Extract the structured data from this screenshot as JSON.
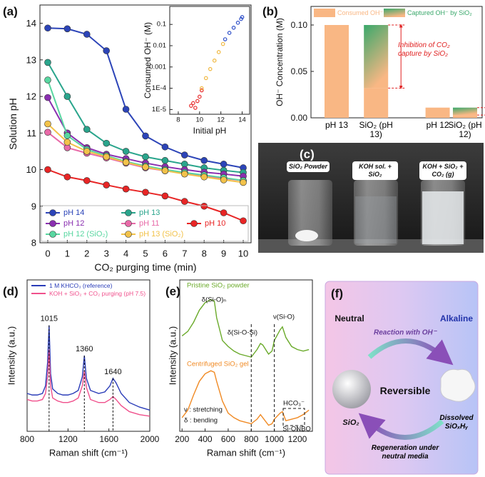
{
  "chart_data": [
    {
      "panel_label": "(a)",
      "type": "line",
      "x_label": "CO₂ purging time (min)",
      "y_label": "Solution pH",
      "x": [
        0,
        1,
        2,
        3,
        4,
        5,
        6,
        7,
        8,
        9,
        10
      ],
      "xlim": [
        -0.4,
        10.4
      ],
      "xticks": [
        0,
        1,
        2,
        3,
        4,
        5,
        6,
        7,
        8,
        9,
        10
      ],
      "ylim": [
        8,
        14.5
      ],
      "yticks": [
        8,
        9,
        10,
        11,
        12,
        13,
        14
      ],
      "markers": true,
      "series": [
        {
          "name": "pH 14",
          "color": "#2c44b8",
          "values": [
            13.87,
            13.85,
            13.7,
            13.25,
            11.65,
            10.92,
            10.62,
            10.4,
            10.25,
            10.15,
            10.05
          ]
        },
        {
          "name": "pH 13",
          "color": "#2aa58c",
          "values": [
            12.93,
            12.0,
            11.1,
            10.72,
            10.5,
            10.35,
            10.25,
            10.15,
            10.05,
            9.98,
            9.92
          ]
        },
        {
          "name": "pH 12",
          "color": "#8a2fb0",
          "values": [
            11.97,
            11.0,
            10.6,
            10.42,
            10.3,
            10.18,
            10.08,
            10.0,
            9.93,
            9.88,
            9.82
          ]
        },
        {
          "name": "pH 11",
          "color": "#e86aa8",
          "values": [
            11.02,
            10.6,
            10.45,
            10.32,
            10.18,
            10.05,
            9.97,
            9.9,
            9.82,
            9.76,
            9.7
          ]
        },
        {
          "name": "pH 10",
          "color": "#e82525",
          "values": [
            10.0,
            9.8,
            9.7,
            9.58,
            9.47,
            9.38,
            9.28,
            9.13,
            9.0,
            8.82,
            8.6
          ]
        },
        {
          "name": "pH 12 (SiO₂)",
          "color": "#58d6a0",
          "values": [
            12.45,
            10.93,
            10.55,
            10.38,
            10.22,
            10.1,
            10.0,
            9.92,
            9.85,
            9.78,
            9.7
          ]
        },
        {
          "name": "pH 13 (SiO₂)",
          "color": "#f2c24a",
          "values": [
            11.25,
            10.75,
            10.5,
            10.35,
            10.2,
            10.07,
            9.97,
            9.88,
            9.8,
            9.72,
            9.65
          ]
        }
      ]
    },
    {
      "type": "scatter",
      "x_label": "Initial pH",
      "y_label": "Consumed OH⁻ (M)",
      "log_y": true,
      "xlim": [
        7.2,
        14.7
      ],
      "xticks": [
        8,
        10,
        12,
        14
      ],
      "ylim": [
        6e-06,
        0.7
      ],
      "yticks": [
        {
          "value": 1e-05,
          "label": "1E-5"
        },
        {
          "value": 0.0001,
          "label": "1E-4"
        },
        0.001,
        0.01,
        0.1
      ],
      "series": [
        {
          "color": "#e83030",
          "x": [
            9.2,
            9.4,
            9.6,
            9.8,
            10.0,
            10.2
          ],
          "values": [
            1.5e-05,
            2e-05,
            1.2e-05,
            2.5e-05,
            4e-05,
            8e-05
          ]
        },
        {
          "color": "#f0b840",
          "x": [
            10.2,
            10.6,
            11.0,
            11.4,
            11.8,
            12.2
          ],
          "values": [
            0.0001,
            0.0003,
            0.0008,
            0.002,
            0.005,
            0.012
          ]
        },
        {
          "color": "#3050c8",
          "x": [
            12.4,
            12.8,
            13.2,
            13.6,
            13.9,
            14.0
          ],
          "values": [
            0.02,
            0.04,
            0.07,
            0.12,
            0.18,
            0.22
          ]
        }
      ]
    },
    {
      "panel_label": "(b)",
      "type": "bar",
      "stacked": true,
      "y_label": "OH⁻ Concentration (M)",
      "categories": [
        "pH 13",
        "SiO₂ (pH 13)",
        "pH 12",
        "SiO₂ (pH 12)"
      ],
      "ylim": [
        0,
        0.12
      ],
      "yticks": [
        {
          "value": 0,
          "label": "0.00"
        },
        {
          "value": 0.05,
          "label": "0.05"
        },
        {
          "value": 0.1,
          "label": "0.10"
        }
      ],
      "series": [
        {
          "name": "Consumed OH⁻",
          "color": "#f9b784",
          "values": [
            0.1,
            0.032,
            0.011,
            0.003
          ]
        },
        {
          "name": "Captured OH⁻ by SiO₂",
          "color": "#3aa86b",
          "gradient": true,
          "values": [
            null,
            0.068,
            null,
            0.008
          ]
        }
      ],
      "annotation": "Inhibition of CO₂ capture by SiO₂"
    },
    {
      "panel_label": "(d)",
      "type": "line",
      "x_label": "Raman shift (cm⁻¹)",
      "y_label": "Intensity (a.u.)",
      "x": [
        800,
        850,
        900,
        950,
        980,
        1000,
        1015,
        1030,
        1050,
        1100,
        1150,
        1200,
        1250,
        1300,
        1340,
        1360,
        1380,
        1420,
        1500,
        1560,
        1610,
        1640,
        1670,
        1720,
        1800,
        1900,
        2000
      ],
      "xlim": [
        800,
        2000
      ],
      "xticks": [
        800,
        1200,
        1600,
        2000
      ],
      "ylim": [
        0,
        100
      ],
      "series": [
        {
          "name": "1 M KHCO₃ (reference)",
          "color": "#2a3cb8",
          "values": [
            25,
            24,
            24,
            25,
            30,
            45,
            70,
            38,
            28,
            25,
            24,
            24,
            25,
            27,
            36,
            50,
            35,
            27,
            25,
            26,
            30,
            35,
            32,
            25,
            19,
            16,
            14
          ]
        },
        {
          "name": "KOH + SiO₂ + CO₂ purging (pH 7.5)",
          "color": "#f0508c",
          "values": [
            21,
            20,
            20,
            21,
            25,
            36,
            54,
            30,
            22,
            20,
            19,
            19,
            20,
            22,
            30,
            40,
            29,
            21,
            19,
            19,
            21,
            23,
            21,
            17,
            13,
            11,
            10
          ]
        }
      ],
      "peaks": [
        1015,
        1360,
        1640
      ]
    },
    {
      "panel_label": "(e)",
      "type": "line",
      "x_label": "Raman shift (cm⁻¹)",
      "y_label": "Intensity (a.u.)",
      "x": [
        200,
        250,
        300,
        350,
        400,
        450,
        480,
        500,
        550,
        600,
        650,
        700,
        750,
        800,
        850,
        880,
        900,
        950,
        980,
        1000,
        1050,
        1070,
        1100,
        1150,
        1200,
        1250,
        1300
      ],
      "xlim": [
        180,
        1330
      ],
      "xticks": [
        200,
        400,
        600,
        800,
        1000,
        1200
      ],
      "ylim": [
        0,
        100
      ],
      "series": [
        {
          "name": "Pristine SiO₂ powder",
          "color": "#6aaa2a",
          "values": [
            63,
            66,
            72,
            80,
            85,
            87,
            86,
            75,
            60,
            56,
            53,
            51,
            50,
            49,
            54,
            58,
            57,
            51,
            53,
            60,
            67,
            69,
            62,
            56,
            54,
            53,
            54
          ]
        },
        {
          "name": "Centrifuged SiO₂ gel",
          "color": "#f08a24",
          "values": [
            9,
            14,
            24,
            33,
            38,
            40,
            39,
            33,
            20,
            12,
            9,
            7,
            6,
            5,
            8,
            11,
            9,
            4,
            5,
            8,
            12,
            13,
            7,
            8,
            9,
            11,
            14
          ]
        }
      ],
      "vlines": [
        800,
        1000
      ],
      "annotations": [
        "δ(Si-O)ₙ",
        "δ(Si-O-Si)",
        "ν(Si-O)",
        "HCO₃⁻",
        "Si-ONBO",
        "ν : stretching",
        "δ : bending"
      ]
    }
  ],
  "photo": {
    "panel_label": "(c)",
    "labels": [
      "SiO₂ Powder",
      "KOH sol. + SiO₂",
      "KOH + SiO₂ + CO₂ (g)"
    ]
  },
  "diagram": {
    "panel_label": "(f)",
    "neutral": "Neutral",
    "alkaline": "Alkaline",
    "forward": "Reaction with OH⁻",
    "center": "Reversible",
    "left": "SiO₂",
    "right": "Dissolved SiOₓHᵧ",
    "backward": "Regeneration under neutral media"
  }
}
